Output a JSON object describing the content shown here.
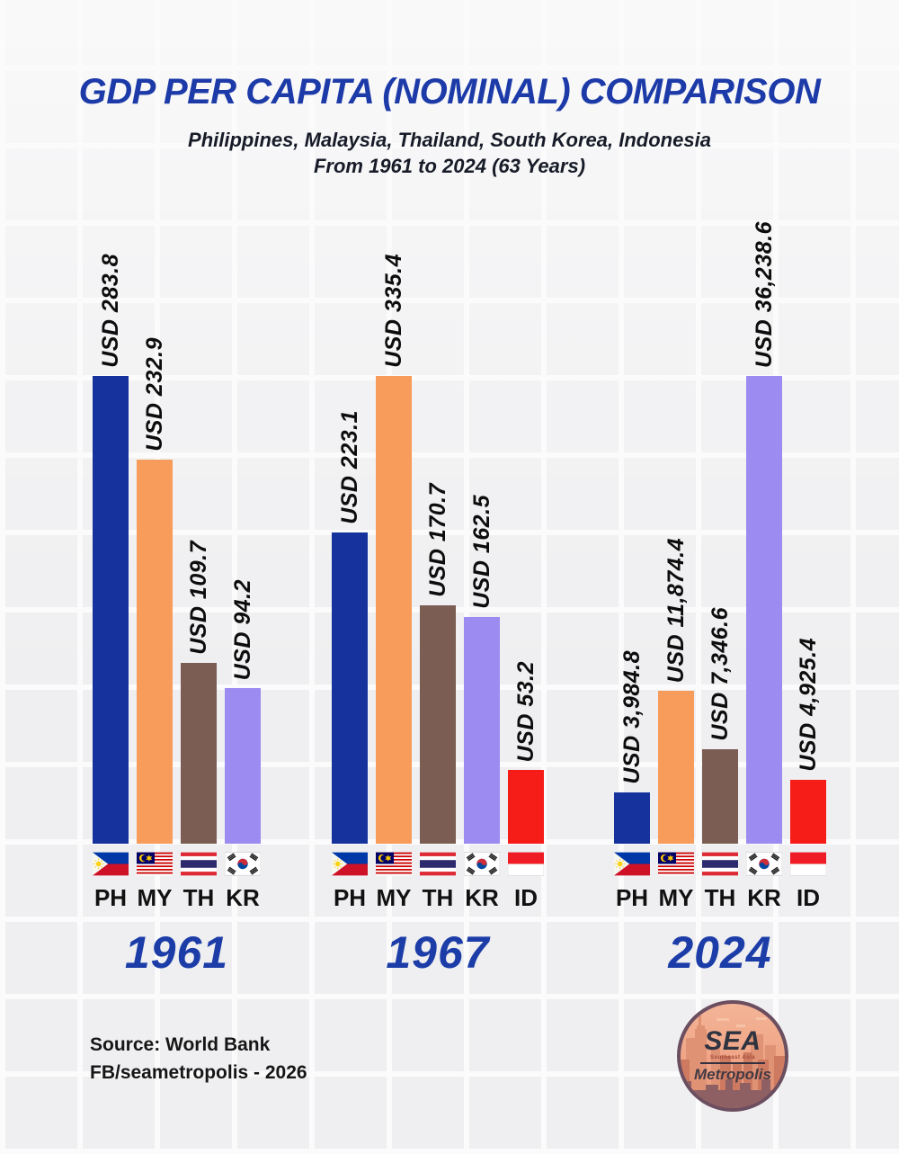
{
  "header": {
    "title": "GDP PER CAPITA (NOMINAL) COMPARISON",
    "subtitle_line1": "Philippines, Malaysia, Thailand, South Korea, Indonesia",
    "subtitle_line2": "From 1961 to 2024 (63 Years)"
  },
  "footer": {
    "source": "Source: World Bank",
    "credit": "FB/seametropolis - 2026"
  },
  "logo": {
    "main_text": "SEA",
    "sub_text": "Southeast Asia",
    "secondary_text": "Metropolis"
  },
  "colors": {
    "title_blue": "#1d3ba8",
    "subtitle_navy": "#181c28",
    "year_blue": "#1c3da8",
    "value_label_black": "#0d0d0d",
    "bar_PH": "#16339d",
    "bar_MY": "#f89c5b",
    "bar_TH": "#7b5d54",
    "bar_KR": "#9c8bf0",
    "bar_ID": "#f61c18"
  },
  "chart_data": {
    "type": "bar",
    "title": "GDP PER CAPITA (NOMINAL) COMPARISON",
    "unit": "USD",
    "grid": false,
    "legend": [
      {
        "code": "PH",
        "country": "Philippines"
      },
      {
        "code": "MY",
        "country": "Malaysia"
      },
      {
        "code": "TH",
        "country": "Thailand"
      },
      {
        "code": "KR",
        "country": "South Korea"
      },
      {
        "code": "ID",
        "country": "Indonesia"
      }
    ],
    "scaling_note": "bar heights normalized to each year-group's maximum value",
    "groups": [
      {
        "year": "1961",
        "bars": [
          {
            "code": "PH",
            "value": 283.8,
            "label": "USD 283.8"
          },
          {
            "code": "MY",
            "value": 232.9,
            "label": "USD 232.9"
          },
          {
            "code": "TH",
            "value": 109.7,
            "label": "USD 109.7"
          },
          {
            "code": "KR",
            "value": 94.2,
            "label": "USD 94.2"
          }
        ]
      },
      {
        "year": "1967",
        "bars": [
          {
            "code": "PH",
            "value": 223.1,
            "label": "USD 223.1"
          },
          {
            "code": "MY",
            "value": 335.4,
            "label": "USD 335.4"
          },
          {
            "code": "TH",
            "value": 170.7,
            "label": "USD 170.7"
          },
          {
            "code": "KR",
            "value": 162.5,
            "label": "USD 162.5"
          },
          {
            "code": "ID",
            "value": 53.2,
            "label": "USD 53.2"
          }
        ]
      },
      {
        "year": "2024",
        "bars": [
          {
            "code": "PH",
            "value": 3984.8,
            "label": "USD 3,984.8"
          },
          {
            "code": "MY",
            "value": 11874.4,
            "label": "USD 11,874.4"
          },
          {
            "code": "TH",
            "value": 7346.6,
            "label": "USD 7,346.6"
          },
          {
            "code": "KR",
            "value": 36238.6,
            "label": "USD 36,238.6"
          },
          {
            "code": "ID",
            "value": 4925.4,
            "label": "USD 4,925.4"
          }
        ]
      }
    ]
  }
}
